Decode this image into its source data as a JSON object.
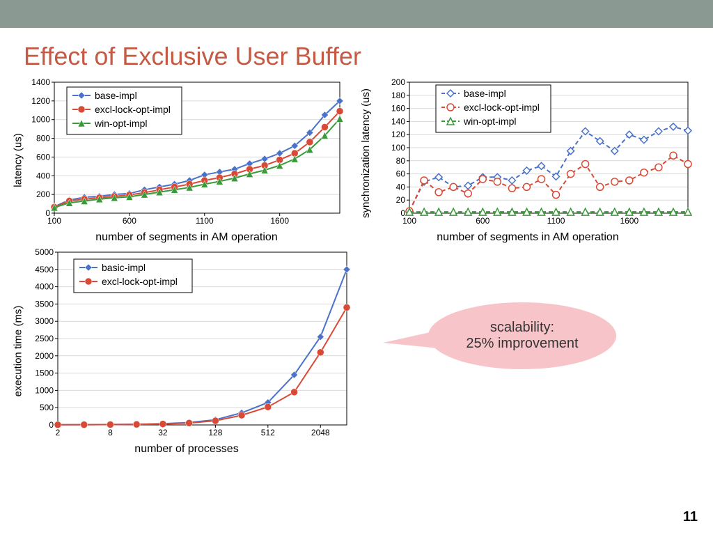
{
  "slide_title": "Effect of Exclusive User Buffer",
  "page_number": "11",
  "colors": {
    "title": "#c55a44",
    "topbar": "#8a9a92",
    "blue": "#4a72c8",
    "red": "#d94a36",
    "green": "#3a9a3a",
    "grid": "#d9d9d9",
    "callout_fill": "#f7c5c9"
  },
  "callout": {
    "line1": "scalability:",
    "line2": "25% improvement"
  },
  "chart1": {
    "type": "line",
    "ylabel": "latency (us)",
    "xlabel": "number of segments in AM operation",
    "xlim": [
      100,
      2000
    ],
    "xticks": [
      100,
      600,
      1100,
      1600
    ],
    "ylim": [
      0,
      1400
    ],
    "ytick_step": 200,
    "series": [
      {
        "name": "base-impl",
        "color": "#4a72c8",
        "marker": "diamond",
        "dash": "solid",
        "x": [
          100,
          200,
          300,
          400,
          500,
          600,
          700,
          800,
          900,
          1000,
          1100,
          1200,
          1300,
          1400,
          1500,
          1600,
          1700,
          1800,
          1900,
          2000
        ],
        "y": [
          70,
          140,
          170,
          180,
          200,
          210,
          250,
          280,
          310,
          350,
          410,
          440,
          470,
          530,
          580,
          640,
          720,
          860,
          1050,
          1200
        ]
      },
      {
        "name": "excl-lock-opt-impl",
        "color": "#d94a36",
        "marker": "circle",
        "dash": "solid",
        "x": [
          100,
          200,
          300,
          400,
          500,
          600,
          700,
          800,
          900,
          1000,
          1100,
          1200,
          1300,
          1400,
          1500,
          1600,
          1700,
          1800,
          1900,
          2000
        ],
        "y": [
          65,
          130,
          150,
          165,
          180,
          195,
          220,
          250,
          280,
          310,
          350,
          380,
          420,
          470,
          510,
          570,
          640,
          760,
          920,
          1090
        ]
      },
      {
        "name": "win-opt-impl",
        "color": "#3a9a3a",
        "marker": "triangle",
        "dash": "solid",
        "x": [
          100,
          200,
          300,
          400,
          500,
          600,
          700,
          800,
          900,
          1000,
          1100,
          1200,
          1300,
          1400,
          1500,
          1600,
          1700,
          1800,
          1900,
          2000
        ],
        "y": [
          60,
          110,
          130,
          150,
          165,
          175,
          200,
          225,
          250,
          275,
          310,
          340,
          375,
          420,
          460,
          510,
          580,
          680,
          830,
          1010
        ]
      }
    ]
  },
  "chart2": {
    "type": "line",
    "ylabel": "synchronization\nlatency (us)",
    "xlabel": "number of segments in AM operation",
    "xlim": [
      100,
      2000
    ],
    "xticks": [
      100,
      600,
      1100,
      1600
    ],
    "ylim": [
      0,
      200
    ],
    "ytick_step": 20,
    "series": [
      {
        "name": "base-impl",
        "color": "#4a72c8",
        "marker": "diamond-open",
        "dash": "dash",
        "x": [
          100,
          200,
          300,
          400,
          500,
          600,
          700,
          800,
          900,
          1000,
          1100,
          1200,
          1300,
          1400,
          1500,
          1600,
          1700,
          1800,
          1900,
          2000
        ],
        "y": [
          3,
          48,
          55,
          40,
          42,
          55,
          55,
          50,
          65,
          72,
          56,
          95,
          125,
          110,
          95,
          120,
          112,
          125,
          132,
          126
        ]
      },
      {
        "name": "excl-lock-opt-impl",
        "color": "#d94a36",
        "marker": "circle-open",
        "dash": "dash",
        "x": [
          100,
          200,
          300,
          400,
          500,
          600,
          700,
          800,
          900,
          1000,
          1100,
          1200,
          1300,
          1400,
          1500,
          1600,
          1700,
          1800,
          1900,
          2000
        ],
        "y": [
          3,
          50,
          32,
          40,
          30,
          52,
          48,
          38,
          40,
          52,
          28,
          60,
          75,
          40,
          48,
          50,
          62,
          70,
          88,
          75
        ]
      },
      {
        "name": "win-opt-impl",
        "color": "#3a9a3a",
        "marker": "triangle-open",
        "dash": "dash",
        "x": [
          100,
          200,
          300,
          400,
          500,
          600,
          700,
          800,
          900,
          1000,
          1100,
          1200,
          1300,
          1400,
          1500,
          1600,
          1700,
          1800,
          1900,
          2000
        ],
        "y": [
          2,
          2,
          2,
          2,
          2,
          2,
          2,
          2,
          2,
          2,
          2,
          2,
          2,
          2,
          2,
          2,
          2,
          2,
          2,
          2
        ]
      }
    ]
  },
  "chart3": {
    "type": "line",
    "ylabel": "execution time (ms)",
    "xlabel": "number of processes",
    "xlim_log": [
      2,
      4096
    ],
    "xticks": [
      2,
      8,
      32,
      128,
      512,
      2048
    ],
    "ylim": [
      0,
      5000
    ],
    "ytick_step": 500,
    "series": [
      {
        "name": "basic-impl",
        "color": "#4a72c8",
        "marker": "diamond",
        "dash": "solid",
        "x": [
          2,
          4,
          8,
          16,
          32,
          64,
          128,
          256,
          512,
          1024,
          2048,
          4096
        ],
        "y": [
          5,
          8,
          12,
          20,
          35,
          70,
          150,
          350,
          650,
          1450,
          2550,
          4500
        ]
      },
      {
        "name": "excl-lock-opt-impl",
        "color": "#d94a36",
        "marker": "circle",
        "dash": "solid",
        "x": [
          2,
          4,
          8,
          16,
          32,
          64,
          128,
          256,
          512,
          1024,
          2048,
          4096
        ],
        "y": [
          5,
          7,
          10,
          16,
          28,
          55,
          120,
          280,
          520,
          950,
          2100,
          3400
        ]
      }
    ]
  }
}
